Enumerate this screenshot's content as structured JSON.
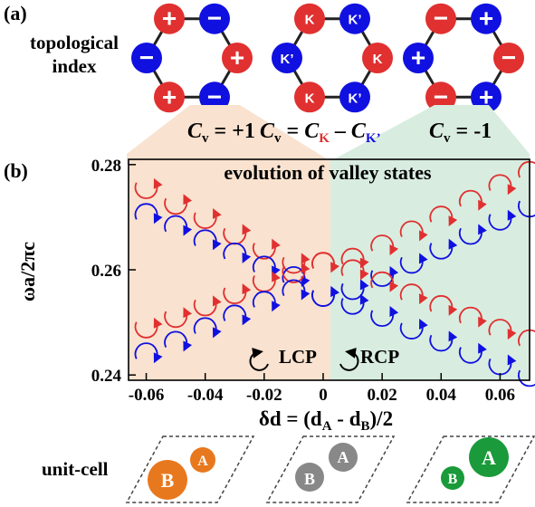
{
  "panel_a": {
    "label": "(a)",
    "title_line1": "topological",
    "title_line2": "index",
    "hexagons": [
      {
        "symbols": [
          "+",
          "−",
          "+",
          "−",
          "+",
          "−"
        ],
        "colors": [
          "red",
          "blue",
          "red",
          "blue",
          "red",
          "blue"
        ]
      },
      {
        "symbols": [
          "K",
          "K’",
          "K",
          "K’",
          "K",
          "K’"
        ],
        "colors": [
          "red",
          "blue",
          "red",
          "blue",
          "red",
          "blue"
        ]
      },
      {
        "symbols": [
          "−",
          "+",
          "−",
          "+",
          "−",
          "+"
        ],
        "colors": [
          "red",
          "blue",
          "red",
          "blue",
          "red",
          "blue"
        ]
      }
    ],
    "cv_left": {
      "prefix": "C",
      "sub": "v",
      "rest": " = +1"
    },
    "cv_mid": {
      "prefix": "C",
      "sub": "v",
      "eq": " = ",
      "ck": "C",
      "ksub": "K",
      "minus": " – ",
      "ck2": "C",
      "k2sub": "K’"
    },
    "cv_right": {
      "prefix": "C",
      "sub": "v",
      "rest": " = -1"
    }
  },
  "panel_b": {
    "label": "(b)",
    "annotation": "evolution of valley states",
    "legend_lcp": "LCP",
    "legend_rcp": "RCP",
    "ylabel": "ωa/2πc",
    "xlabel_main": "δd = (d",
    "xlabel_subA": "A",
    "xlabel_mid": " - d",
    "xlabel_subB": "B",
    "xlabel_end": ")/2"
  },
  "unit_cell": {
    "label": "unit-cell",
    "cells": [
      {
        "big": "B",
        "small": "A",
        "color": "#e8781e"
      },
      {
        "big": "B",
        "small": "A",
        "color": "#888888"
      },
      {
        "big": "A",
        "small": "B",
        "color": "#1a9a3a"
      }
    ]
  },
  "colors": {
    "red": "#e03030",
    "blue": "#1010e0",
    "orange_bg": "#f9e2cf",
    "green_bg": "#d8ede0"
  },
  "chart_data": {
    "type": "line",
    "xlim": [
      -0.066,
      0.07
    ],
    "ylim": [
      0.239,
      0.281
    ],
    "x_ticks": [
      -0.06,
      -0.04,
      -0.02,
      0,
      0.02,
      0.04,
      0.06
    ],
    "x_tick_labels": [
      "-0.06",
      "-0.04",
      "-0.02",
      "0",
      "0.02",
      "0.04",
      "0.06"
    ],
    "y_ticks": [
      0.24,
      0.26,
      0.28
    ],
    "y_tick_labels": [
      "0.24",
      "0.26",
      "0.28"
    ],
    "x": [
      -0.06,
      -0.05,
      -0.04,
      -0.03,
      -0.02,
      -0.01,
      0,
      0.01,
      0.02,
      0.03,
      0.04,
      0.05,
      0.06,
      0.07
    ],
    "series": [
      {
        "band": "upper-top",
        "color": "red",
        "values": [
          0.2775,
          0.2745,
          0.2718,
          0.2688,
          0.266,
          0.2633,
          0.2612,
          0.262,
          0.2645,
          0.2672,
          0.27,
          0.273,
          0.276,
          0.2785
        ]
      },
      {
        "band": "upper-bottom",
        "color": "blue",
        "values": [
          0.2705,
          0.2682,
          0.2655,
          0.263,
          0.2605,
          0.2585,
          0.257,
          0.2583,
          0.2608,
          0.2633,
          0.266,
          0.2688,
          0.2715,
          0.274
        ]
      },
      {
        "band": "lower-top",
        "color": "red",
        "values": [
          0.251,
          0.253,
          0.2552,
          0.2575,
          0.2598,
          0.2615,
          0.2612,
          0.2598,
          0.2575,
          0.2552,
          0.253,
          0.2508,
          0.2485,
          0.2465
        ]
      },
      {
        "band": "lower-bottom",
        "color": "blue",
        "values": [
          0.244,
          0.2462,
          0.2488,
          0.2512,
          0.2538,
          0.256,
          0.257,
          0.2555,
          0.2532,
          0.2508,
          0.2485,
          0.2462,
          0.244,
          0.2418
        ]
      }
    ]
  }
}
